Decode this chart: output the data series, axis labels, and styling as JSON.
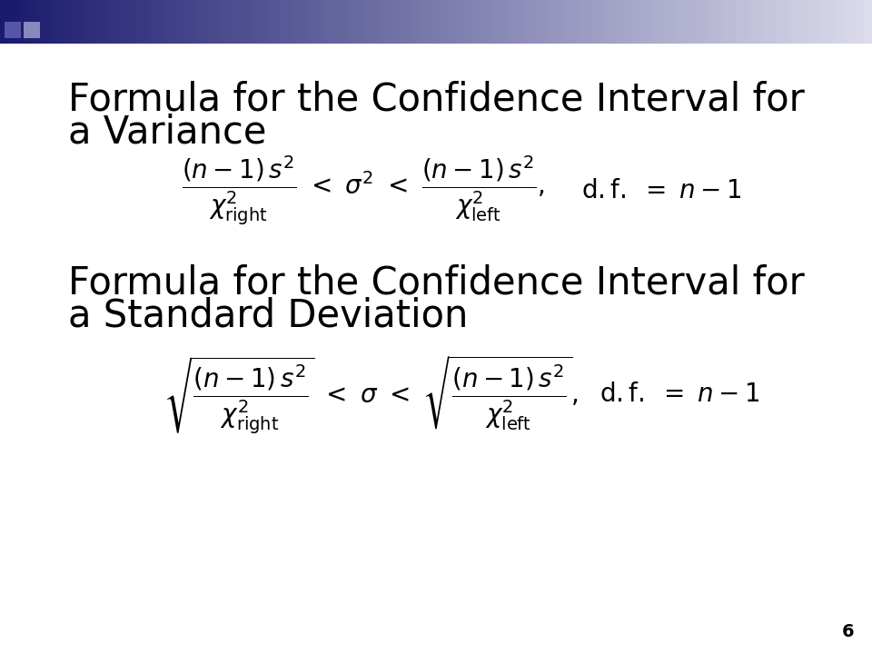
{
  "title1_line1": "Formula for the Confidence Interval for",
  "title1_line2": "a Variance",
  "title2_line1": "Formula for the Confidence Interval for",
  "title2_line2": "a Standard Deviation",
  "page_number": "6",
  "bg_color": "#ffffff",
  "text_color": "#000000",
  "header_color_left": "#1a1a6e",
  "header_color_right": "#dcdcec",
  "title_fontsize": 30,
  "formula_fontsize": 20,
  "df_fontsize": 20
}
